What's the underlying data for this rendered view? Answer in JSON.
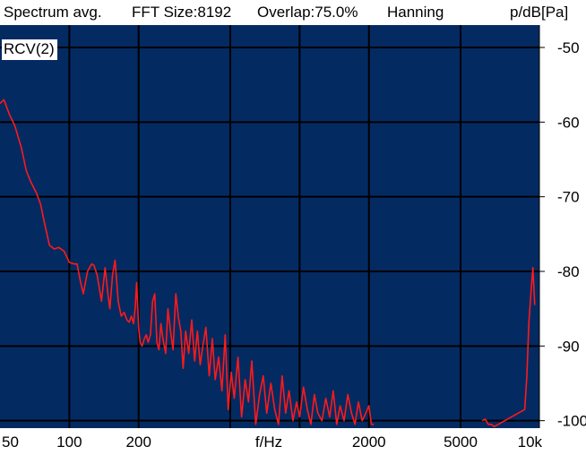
{
  "header": {
    "mode": "Spectrum avg.",
    "fft_size": "FFT Size:8192",
    "overlap": "Overlap:75.0%",
    "window": "Hanning",
    "unit": "p/dB[Pa]"
  },
  "colors": {
    "plot_background": "#042a62",
    "grid": "#000000",
    "trace": "#ff1a1a"
  },
  "chart_data": {
    "type": "line",
    "xscale": "log",
    "xlabel": "f/Hz",
    "ylabel": "p/dB[Pa]",
    "xlim": [
      50,
      11000
    ],
    "ylim": [
      -101,
      -47
    ],
    "grid": true,
    "x_ticks": [
      {
        "value": 50,
        "label": "50"
      },
      {
        "value": 100,
        "label": "100"
      },
      {
        "value": 200,
        "label": "200"
      },
      {
        "value": 2000,
        "label": "2000"
      },
      {
        "value": 5000,
        "label": "5000"
      },
      {
        "value": 10000,
        "label": "10k"
      }
    ],
    "x_gridlines": [
      100,
      200,
      500,
      1000,
      2000,
      5000
    ],
    "y_ticks": [
      {
        "value": -50,
        "label": "-50"
      },
      {
        "value": -60,
        "label": "-60"
      },
      {
        "value": -70,
        "label": "-70"
      },
      {
        "value": -80,
        "label": "-80"
      },
      {
        "value": -90,
        "label": "-90"
      },
      {
        "value": -100,
        "label": "-100"
      }
    ],
    "series": [
      {
        "name": "RCV(2)",
        "x": [
          50,
          52,
          55,
          58,
          62,
          65,
          68,
          72,
          75,
          78,
          82,
          86,
          90,
          95,
          100,
          105,
          108,
          112,
          115,
          120,
          125,
          128,
          132,
          138,
          143,
          147,
          150,
          154,
          158,
          163,
          168,
          173,
          178,
          182,
          186,
          190,
          193,
          196,
          200,
          203,
          207,
          212,
          216,
          220,
          225,
          230,
          235,
          240,
          245,
          250,
          255,
          262,
          268,
          275,
          282,
          290,
          297,
          305,
          312,
          320,
          330,
          340,
          350,
          360,
          370,
          380,
          392,
          405,
          418,
          430,
          445,
          460,
          475,
          490,
          505,
          520,
          540,
          560,
          580,
          600,
          620,
          645,
          670,
          695,
          720,
          750,
          780,
          810,
          840,
          870,
          900,
          935,
          970,
          1000,
          1040,
          1080,
          1120,
          1160,
          1200,
          1250,
          1300,
          1350,
          1400,
          1450,
          1500,
          1560,
          1620,
          1680,
          1740,
          1800,
          1870,
          1940,
          2000,
          2050,
          2100,
          6200,
          6400,
          6600,
          6800,
          7000,
          9500,
          9700,
          9900,
          10100,
          10300,
          10500
        ],
        "y": [
          -57.5,
          -57.0,
          -59.0,
          -60.5,
          -63.5,
          -66.5,
          -68.0,
          -69.5,
          -71.0,
          -73.5,
          -76.5,
          -77.0,
          -76.8,
          -77.3,
          -78.8,
          -79.0,
          -79.0,
          -81.5,
          -83.0,
          -80.0,
          -79.0,
          -79.2,
          -80.5,
          -84.0,
          -79.5,
          -83.0,
          -85.0,
          -80.5,
          -78.5,
          -84.0,
          -86.0,
          -85.5,
          -86.5,
          -86.8,
          -86.0,
          -87.0,
          -85.0,
          -81.5,
          -87.5,
          -89.5,
          -90.0,
          -89.0,
          -88.5,
          -89.5,
          -88.5,
          -84.0,
          -83.0,
          -89.5,
          -90.5,
          -87.0,
          -89.0,
          -91.0,
          -85.0,
          -88.0,
          -90.5,
          -83.0,
          -86.0,
          -88.0,
          -93.0,
          -88.0,
          -91.0,
          -86.5,
          -92.0,
          -88.0,
          -92.5,
          -90.0,
          -87.5,
          -94.0,
          -89.0,
          -94.5,
          -91.5,
          -96.0,
          -88.5,
          -98.5,
          -93.5,
          -97.0,
          -91.5,
          -99.5,
          -94.5,
          -97.5,
          -92.0,
          -100.5,
          -96.5,
          -94.0,
          -99.0,
          -95.0,
          -98.5,
          -100.5,
          -94.0,
          -99.0,
          -96.0,
          -100.0,
          -97.5,
          -99.5,
          -95.5,
          -98.5,
          -100.5,
          -96.5,
          -99.0,
          -100.0,
          -97.0,
          -99.5,
          -96.0,
          -100.5,
          -98.0,
          -100.0,
          -96.5,
          -99.0,
          -100.5,
          -97.5,
          -100.0,
          -99.0,
          -98.0,
          -100.5,
          -100.5,
          -100.0,
          -99.8,
          -100.5,
          -100.5,
          -100.8,
          -98.5,
          -94.0,
          -87.0,
          -83.0,
          -79.5,
          -84.5
        ]
      }
    ]
  }
}
